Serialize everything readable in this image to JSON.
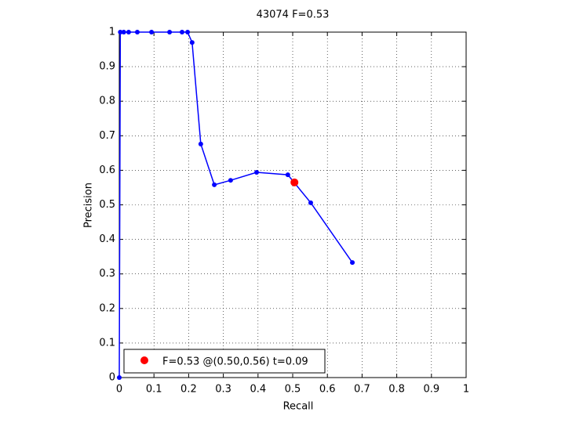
{
  "chart_data": {
    "type": "line",
    "title": "43074 F=0.53",
    "x_label": "Recall",
    "y_label": "Precision",
    "series": [
      {
        "color": "#0000ff",
        "x": [
          0,
          0.003,
          0.013,
          0.027,
          0.052,
          0.093,
          0.145,
          0.181,
          0.197,
          0.21,
          0.235,
          0.274,
          0.321,
          0.396,
          0.486,
          0.552,
          0.672
        ],
        "values": [
          0,
          1,
          1,
          1,
          1,
          1,
          1,
          1,
          1,
          0.97,
          0.676,
          0.558,
          0.571,
          0.594,
          0.587,
          0.506,
          0.333
        ]
      },
      {
        "name": "F=0.53 @(0.50,0.56) t=0.09",
        "color": "#ff0000",
        "x": [
          0.505
        ],
        "values": [
          0.565
        ]
      }
    ],
    "xlim": [
      0,
      1
    ],
    "ylim": [
      0,
      1
    ],
    "xticks": [
      0,
      0.1,
      0.2,
      0.3,
      0.4,
      0.5,
      0.6,
      0.7,
      0.8,
      0.9,
      1
    ],
    "yticks": [
      0,
      0.1,
      0.2,
      0.3,
      0.4,
      0.5,
      0.6,
      0.7,
      0.8,
      0.9,
      1
    ],
    "grid": true,
    "legend_position": "southwest"
  }
}
